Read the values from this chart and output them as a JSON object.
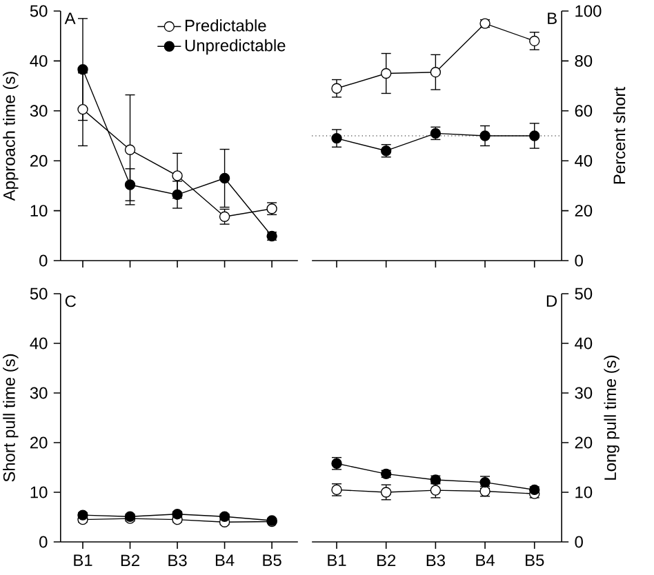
{
  "chart_data": [
    {
      "type": "line",
      "ylabel": "Approach time (s)",
      "categories": [
        null,
        null,
        null,
        null,
        null
      ],
      "ylim": [
        0,
        50
      ],
      "yticks": [
        0,
        10,
        20,
        30,
        40,
        50
      ],
      "marker": "circle",
      "line_style": "solid",
      "legend": "top right",
      "grid": false,
      "annotations": [
        "A"
      ],
      "series": [
        {
          "name": "Predictable",
          "color": "#ffffff",
          "values": [
            30.3,
            22.2,
            17.0,
            8.8,
            10.4
          ],
          "errors": [
            7.3,
            11,
            4.5,
            1.5,
            1.2
          ]
        },
        {
          "name": "Unpredictable",
          "color": "#000000",
          "values": [
            38.3,
            15.2,
            13.2,
            16.5,
            4.9
          ],
          "errors": [
            10.2,
            3.2,
            2.7,
            5.8,
            0.8
          ]
        }
      ]
    },
    {
      "type": "line",
      "ylabel": "Percent short",
      "categories": [
        null,
        null,
        null,
        null,
        null
      ],
      "ylim": [
        0,
        100
      ],
      "yticks": [
        0,
        20,
        40,
        60,
        80,
        100
      ],
      "marker": "circle",
      "line_style": "solid",
      "grid": false,
      "annotations": [
        "B"
      ],
      "ref_lines": [
        {
          "axis": "y",
          "value": 50,
          "line_style": "dotted",
          "color": "#000000"
        }
      ],
      "series": [
        {
          "color": "#ffffff",
          "values": [
            69,
            75,
            75.5,
            95,
            88
          ],
          "errors": [
            3.5,
            8,
            7,
            1.5,
            3.5
          ]
        },
        {
          "color": "#000000",
          "values": [
            49,
            44,
            51,
            50,
            50
          ],
          "errors": [
            3.5,
            2.5,
            2.5,
            4,
            5
          ]
        }
      ]
    },
    {
      "type": "line",
      "ylabel": "Short pull time (s)",
      "categories": [
        "B1",
        "B2",
        "B3",
        "B4",
        "B5"
      ],
      "ylim": [
        0,
        50
      ],
      "yticks": [
        0,
        10,
        20,
        30,
        40,
        50
      ],
      "marker": "circle",
      "line_style": "solid",
      "grid": false,
      "annotations": [
        "C"
      ],
      "series": [
        {
          "color": "#ffffff",
          "values": [
            4.5,
            4.7,
            4.5,
            4.0,
            4.1
          ],
          "errors": [
            0.5,
            0.5,
            0.5,
            0.5,
            0.3
          ]
        },
        {
          "color": "#000000",
          "values": [
            5.4,
            5.1,
            5.6,
            5.1,
            4.3
          ],
          "errors": [
            0.5,
            0.5,
            0.5,
            0.5,
            0.4
          ]
        }
      ]
    },
    {
      "type": "line",
      "ylabel": "Long pull time (s)",
      "categories": [
        "B1",
        "B2",
        "B3",
        "B4",
        "B5"
      ],
      "ylim": [
        0,
        50
      ],
      "yticks": [
        0,
        10,
        20,
        30,
        40,
        50
      ],
      "marker": "circle",
      "line_style": "solid",
      "grid": false,
      "annotations": [
        "D"
      ],
      "series": [
        {
          "color": "#ffffff",
          "values": [
            10.5,
            10.0,
            10.4,
            10.2,
            9.7
          ],
          "errors": [
            1.2,
            1.5,
            1.5,
            1.0,
            0.8
          ]
        },
        {
          "color": "#000000",
          "values": [
            15.8,
            13.7,
            12.5,
            12.0,
            10.5
          ],
          "errors": [
            1.2,
            0.7,
            0.8,
            1.2,
            0.6
          ]
        }
      ]
    }
  ]
}
